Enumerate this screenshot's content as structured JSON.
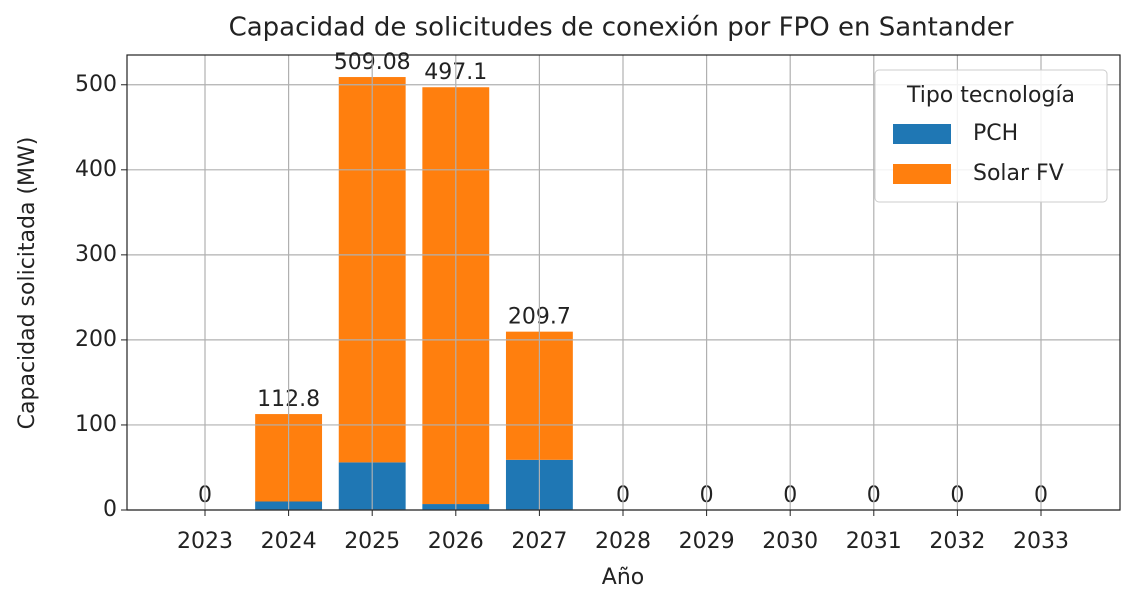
{
  "chart_data": {
    "type": "stacked_bar",
    "title": "Capacidad de solicitudes de conexión por FPO en Santander",
    "xlabel": "Año",
    "ylabel": "Capacidad solicitada (MW)",
    "categories": [
      "2023",
      "2024",
      "2025",
      "2026",
      "2027",
      "2028",
      "2029",
      "2030",
      "2031",
      "2032",
      "2033"
    ],
    "series": [
      {
        "name": "PCH",
        "color": "#1f77b4",
        "values": [
          0,
          10,
          56,
          7,
          59,
          0,
          0,
          0,
          0,
          0,
          0
        ]
      },
      {
        "name": "Solar FV",
        "color": "#ff7f0e",
        "values": [
          0,
          102.8,
          453.08,
          490.1,
          150.7,
          0,
          0,
          0,
          0,
          0,
          0
        ]
      }
    ],
    "totals": [
      0,
      112.8,
      509.08,
      497.1,
      209.7,
      0,
      0,
      0,
      0,
      0,
      0
    ],
    "legend_title": "Tipo tecnología",
    "legend": "upper right",
    "ylim": [
      0,
      535
    ],
    "yticks": [
      0,
      100,
      200,
      300,
      400,
      500
    ],
    "grid": true
  }
}
